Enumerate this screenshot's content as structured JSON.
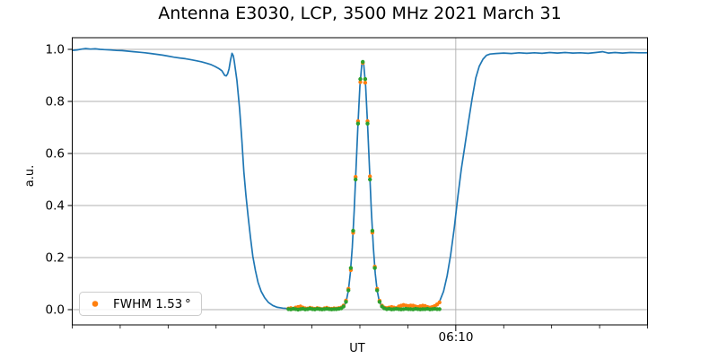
{
  "chart_data": {
    "type": "line+scatter",
    "title": "Antenna E3030, LCP, 3500 MHz 2021 March 31",
    "xlabel": "UT",
    "ylabel": "a.u.",
    "grid": true,
    "colors": {
      "scan_line": "#1f77b4",
      "data_points": "#ff7f0e",
      "fit_points": "#2ca02c",
      "grid": "#b0b0b0",
      "spine": "#000000"
    },
    "legend": {
      "label": "FWHM 1.53 °",
      "marker_color": "#ff7f0e",
      "position": "lower left"
    },
    "y_axis": {
      "label": "a.u.",
      "ticks": [
        0.0,
        0.2,
        0.4,
        0.6,
        0.8,
        1.0
      ],
      "tick_labels": [
        "0.0",
        "0.2",
        "0.4",
        "0.6",
        "0.8",
        "1.0"
      ],
      "range": [
        -0.059,
        1.045
      ]
    },
    "x_axis": {
      "label": "UT",
      "unit": "minutes from left edge",
      "range": [
        0,
        60
      ],
      "minor_tick_step": 5,
      "labeled_tick": {
        "t": 40,
        "label": "06:10"
      }
    },
    "series": [
      {
        "name": "scan_line",
        "type": "line",
        "color": "#1f77b4",
        "points": [
          [
            0,
            0.996
          ],
          [
            0.5,
            0.998
          ],
          [
            1.0,
            1.001
          ],
          [
            1.4,
            1.003
          ],
          [
            1.9,
            1.001
          ],
          [
            2.4,
            1.002
          ],
          [
            2.9,
            1.0
          ],
          [
            3.4,
            0.999
          ],
          [
            4.0,
            0.998
          ],
          [
            4.6,
            0.996
          ],
          [
            5.2,
            0.995
          ],
          [
            5.8,
            0.993
          ],
          [
            6.4,
            0.991
          ],
          [
            7.0,
            0.989
          ],
          [
            7.6,
            0.987
          ],
          [
            8.2,
            0.984
          ],
          [
            8.8,
            0.981
          ],
          [
            9.4,
            0.978
          ],
          [
            10.0,
            0.974
          ],
          [
            10.6,
            0.97
          ],
          [
            11.2,
            0.967
          ],
          [
            11.8,
            0.964
          ],
          [
            12.4,
            0.96
          ],
          [
            13.0,
            0.956
          ],
          [
            13.5,
            0.952
          ],
          [
            14.0,
            0.947
          ],
          [
            14.5,
            0.941
          ],
          [
            14.9,
            0.934
          ],
          [
            15.3,
            0.926
          ],
          [
            15.6,
            0.918
          ],
          [
            15.9,
            0.9
          ],
          [
            16.05,
            0.898
          ],
          [
            16.2,
            0.906
          ],
          [
            16.35,
            0.925
          ],
          [
            16.5,
            0.958
          ],
          [
            16.66,
            0.985
          ],
          [
            16.8,
            0.975
          ],
          [
            16.9,
            0.955
          ],
          [
            17.18,
            0.88
          ],
          [
            17.46,
            0.77
          ],
          [
            17.69,
            0.65
          ],
          [
            17.9,
            0.53
          ],
          [
            18.11,
            0.44
          ],
          [
            18.34,
            0.36
          ],
          [
            18.58,
            0.28
          ],
          [
            18.83,
            0.205
          ],
          [
            19.1,
            0.15
          ],
          [
            19.38,
            0.105
          ],
          [
            19.7,
            0.07
          ],
          [
            20.08,
            0.045
          ],
          [
            20.45,
            0.028
          ],
          [
            20.92,
            0.016
          ],
          [
            21.39,
            0.009
          ],
          [
            21.95,
            0.006
          ],
          [
            22.6,
            0.004
          ],
          [
            23.3,
            0.003
          ],
          [
            24.2,
            0.002
          ],
          [
            25.1,
            0.003
          ],
          [
            26.0,
            0.002
          ],
          [
            27.0,
            0.003
          ],
          [
            27.6,
            0.004
          ],
          [
            28.0,
            0.005
          ],
          [
            28.2,
            0.008
          ],
          [
            28.4,
            0.017
          ],
          [
            28.6,
            0.036
          ],
          [
            28.8,
            0.074
          ],
          [
            29.0,
            0.139
          ],
          [
            29.2,
            0.239
          ],
          [
            29.4,
            0.377
          ],
          [
            29.6,
            0.543
          ],
          [
            29.8,
            0.715
          ],
          [
            30.0,
            0.859
          ],
          [
            30.2,
            0.941
          ],
          [
            30.3,
            0.952
          ],
          [
            30.4,
            0.941
          ],
          [
            30.6,
            0.859
          ],
          [
            30.8,
            0.715
          ],
          [
            31.0,
            0.543
          ],
          [
            31.2,
            0.377
          ],
          [
            31.4,
            0.239
          ],
          [
            31.6,
            0.139
          ],
          [
            31.8,
            0.074
          ],
          [
            32.0,
            0.036
          ],
          [
            32.2,
            0.017
          ],
          [
            32.4,
            0.008
          ],
          [
            32.6,
            0.004
          ],
          [
            33.2,
            0.003
          ],
          [
            34.0,
            0.002
          ],
          [
            34.8,
            0.003
          ],
          [
            35.6,
            0.002
          ],
          [
            36.4,
            0.003
          ],
          [
            37.2,
            0.004
          ],
          [
            37.8,
            0.008
          ],
          [
            38.1,
            0.018
          ],
          [
            38.34,
            0.034
          ],
          [
            38.72,
            0.07
          ],
          [
            39.1,
            0.13
          ],
          [
            39.46,
            0.21
          ],
          [
            39.83,
            0.31
          ],
          [
            40.2,
            0.43
          ],
          [
            40.58,
            0.54
          ],
          [
            40.95,
            0.63
          ],
          [
            41.32,
            0.72
          ],
          [
            41.7,
            0.81
          ],
          [
            42.08,
            0.89
          ],
          [
            42.45,
            0.935
          ],
          [
            42.83,
            0.962
          ],
          [
            43.2,
            0.977
          ],
          [
            43.58,
            0.982
          ],
          [
            44.2,
            0.984
          ],
          [
            45.0,
            0.986
          ],
          [
            45.8,
            0.984
          ],
          [
            46.6,
            0.987
          ],
          [
            47.4,
            0.985
          ],
          [
            48.2,
            0.987
          ],
          [
            49.0,
            0.985
          ],
          [
            49.8,
            0.988
          ],
          [
            50.6,
            0.986
          ],
          [
            51.4,
            0.988
          ],
          [
            52.2,
            0.986
          ],
          [
            53.0,
            0.987
          ],
          [
            53.8,
            0.985
          ],
          [
            54.6,
            0.988
          ],
          [
            55.3,
            0.991
          ],
          [
            55.9,
            0.986
          ],
          [
            56.6,
            0.988
          ],
          [
            57.4,
            0.986
          ],
          [
            58.2,
            0.988
          ],
          [
            59.1,
            0.987
          ],
          [
            60,
            0.987
          ]
        ]
      },
      {
        "name": "data_points",
        "type": "scatter",
        "color": "#ff7f0e",
        "x": [
          22.55,
          22.8,
          23.05,
          23.3,
          23.55,
          23.8,
          24.05,
          24.3,
          24.55,
          24.8,
          25.05,
          25.3,
          25.55,
          25.8,
          26.05,
          26.3,
          26.55,
          26.8,
          27.05,
          27.3,
          27.55,
          27.8,
          28.05,
          28.3,
          28.55,
          28.8,
          29.05,
          29.3,
          29.55,
          29.8,
          30.05,
          30.3,
          30.55,
          30.8,
          31.05,
          31.3,
          31.55,
          31.8,
          32.05,
          32.3,
          32.55,
          32.8,
          33.05,
          33.3,
          33.55,
          33.8,
          34.05,
          34.3,
          34.55,
          34.8,
          35.05,
          35.3,
          35.55,
          35.8,
          36.05,
          36.3,
          36.55,
          36.8,
          37.05,
          37.3,
          37.55,
          37.8,
          38.05,
          38.3
        ],
        "y": [
          0.004,
          0.006,
          0.003,
          0.008,
          0.01,
          0.012,
          0.008,
          0.005,
          0.004,
          0.007,
          0.005,
          0.003,
          0.006,
          0.004,
          0.002,
          0.005,
          0.007,
          0.004,
          0.003,
          0.005,
          0.004,
          0.006,
          0.008,
          0.016,
          0.035,
          0.08,
          0.152,
          0.295,
          0.51,
          0.724,
          0.874,
          0.948,
          0.872,
          0.724,
          0.512,
          0.296,
          0.165,
          0.08,
          0.034,
          0.015,
          0.008,
          0.006,
          0.008,
          0.01,
          0.008,
          0.006,
          0.012,
          0.015,
          0.018,
          0.016,
          0.014,
          0.016,
          0.015,
          0.012,
          0.01,
          0.013,
          0.015,
          0.014,
          0.01,
          0.008,
          0.01,
          0.014,
          0.02,
          0.028
        ]
      },
      {
        "name": "fit_points",
        "type": "scatter",
        "color": "#2ca02c",
        "x": [
          22.55,
          22.8,
          23.05,
          23.3,
          23.55,
          23.8,
          24.05,
          24.3,
          24.55,
          24.8,
          25.05,
          25.3,
          25.55,
          25.8,
          26.05,
          26.3,
          26.55,
          26.8,
          27.05,
          27.3,
          27.55,
          27.8,
          28.05,
          28.3,
          28.55,
          28.8,
          29.05,
          29.3,
          29.55,
          29.8,
          30.05,
          30.3,
          30.55,
          30.8,
          31.05,
          31.3,
          31.55,
          31.8,
          32.05,
          32.3,
          32.55,
          32.8,
          33.05,
          33.3,
          33.55,
          33.8,
          34.05,
          34.3,
          34.55,
          34.8,
          35.05,
          35.3,
          35.55,
          35.8,
          36.05,
          36.3,
          36.55,
          36.8,
          37.05,
          37.3,
          37.55,
          37.8,
          38.05,
          38.3
        ],
        "y": [
          0.002,
          0.001,
          0.003,
          0.002,
          0.0,
          0.002,
          0.003,
          0.001,
          0.002,
          0.004,
          0.002,
          0.001,
          0.003,
          0.002,
          0.001,
          0.002,
          0.003,
          0.002,
          0.001,
          0.002,
          0.002,
          0.003,
          0.005,
          0.012,
          0.03,
          0.074,
          0.16,
          0.303,
          0.5,
          0.715,
          0.886,
          0.952,
          0.886,
          0.715,
          0.5,
          0.303,
          0.16,
          0.074,
          0.03,
          0.012,
          0.005,
          0.002,
          0.003,
          0.001,
          0.002,
          0.003,
          0.002,
          0.001,
          0.002,
          0.003,
          0.002,
          0.002,
          0.001,
          0.003,
          0.002,
          0.001,
          0.002,
          0.002,
          0.003,
          0.001,
          0.002,
          0.003,
          0.002,
          0.002
        ]
      }
    ]
  }
}
